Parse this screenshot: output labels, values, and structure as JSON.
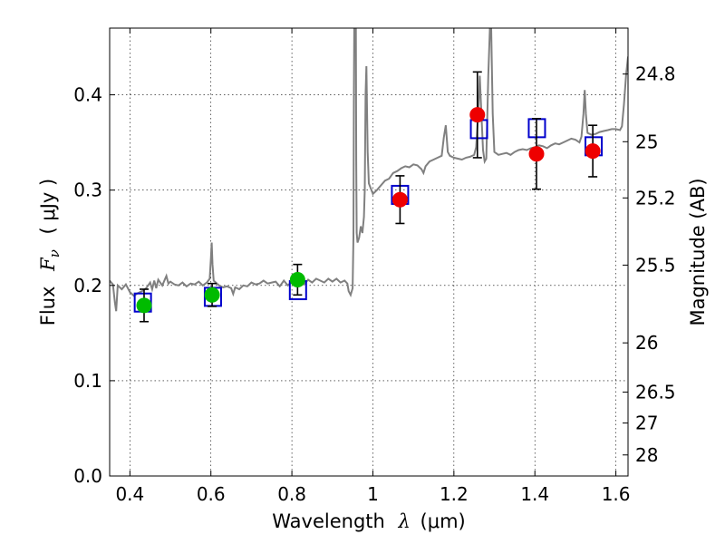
{
  "chart_data": {
    "type": "scatter",
    "xlabel_prefix": "Wavelength",
    "xlabel_var": "λ",
    "xlabel_unit": "(μm)",
    "ylabel_prefix": "Flux",
    "ylabel_var": "F",
    "ylabel_sub": "ν",
    "ylabel_unit": "( μJy )",
    "y2label": "Magnitude (AB)",
    "xlim": [
      0.35,
      1.63
    ],
    "ylim": [
      0.0,
      0.47
    ],
    "x_ticks": [
      0.4,
      0.6,
      0.8,
      1.0,
      1.2,
      1.4,
      1.6
    ],
    "x_tick_labels": [
      "0.4",
      "0.6",
      "0.8",
      "1",
      "1.2",
      "1.4",
      "1.6"
    ],
    "y_ticks": [
      0.0,
      0.1,
      0.2,
      0.3,
      0.4
    ],
    "y_tick_labels": [
      "0.0",
      "0.1",
      "0.2",
      "0.3",
      "0.4"
    ],
    "mag_ticks": [
      {
        "label": "24.8",
        "flux": 0.4218
      },
      {
        "label": "25",
        "flux": 0.3508
      },
      {
        "label": "25.2",
        "flux": 0.2918
      },
      {
        "label": "25.5",
        "flux": 0.2213
      },
      {
        "label": "26",
        "flux": 0.1397
      },
      {
        "label": "26.5",
        "flux": 0.0881
      },
      {
        "label": "27",
        "flux": 0.0556
      },
      {
        "label": "28",
        "flux": 0.0221
      }
    ],
    "grid": true,
    "colors": {
      "template": "#808080",
      "model_box": "#0000cc",
      "optical": "#00bb00",
      "infrared": "#ee0000",
      "errorbar": "#000000"
    },
    "series": [
      {
        "name": "template spectrum",
        "kind": "line",
        "points": [
          [
            0.35,
            0.205
          ],
          [
            0.358,
            0.201
          ],
          [
            0.363,
            0.182
          ],
          [
            0.366,
            0.173
          ],
          [
            0.37,
            0.2
          ],
          [
            0.38,
            0.196
          ],
          [
            0.39,
            0.201
          ],
          [
            0.4,
            0.193
          ],
          [
            0.41,
            0.189
          ],
          [
            0.42,
            0.192
          ],
          [
            0.43,
            0.194
          ],
          [
            0.44,
            0.197
          ],
          [
            0.45,
            0.203
          ],
          [
            0.455,
            0.196
          ],
          [
            0.46,
            0.205
          ],
          [
            0.465,
            0.197
          ],
          [
            0.47,
            0.206
          ],
          [
            0.48,
            0.2
          ],
          [
            0.49,
            0.21
          ],
          [
            0.495,
            0.202
          ],
          [
            0.5,
            0.204
          ],
          [
            0.51,
            0.201
          ],
          [
            0.52,
            0.2
          ],
          [
            0.53,
            0.203
          ],
          [
            0.54,
            0.199
          ],
          [
            0.55,
            0.202
          ],
          [
            0.56,
            0.201
          ],
          [
            0.57,
            0.204
          ],
          [
            0.58,
            0.2
          ],
          [
            0.59,
            0.203
          ],
          [
            0.597,
            0.207
          ],
          [
            0.6,
            0.228
          ],
          [
            0.602,
            0.245
          ],
          [
            0.604,
            0.222
          ],
          [
            0.607,
            0.205
          ],
          [
            0.615,
            0.202
          ],
          [
            0.62,
            0.2
          ],
          [
            0.63,
            0.198
          ],
          [
            0.64,
            0.199
          ],
          [
            0.65,
            0.197
          ],
          [
            0.655,
            0.191
          ],
          [
            0.66,
            0.198
          ],
          [
            0.67,
            0.196
          ],
          [
            0.68,
            0.2
          ],
          [
            0.69,
            0.199
          ],
          [
            0.7,
            0.203
          ],
          [
            0.71,
            0.201
          ],
          [
            0.72,
            0.202
          ],
          [
            0.73,
            0.205
          ],
          [
            0.74,
            0.202
          ],
          [
            0.75,
            0.203
          ],
          [
            0.76,
            0.204
          ],
          [
            0.77,
            0.199
          ],
          [
            0.78,
            0.205
          ],
          [
            0.79,
            0.2
          ],
          [
            0.8,
            0.204
          ],
          [
            0.81,
            0.202
          ],
          [
            0.82,
            0.206
          ],
          [
            0.83,
            0.201
          ],
          [
            0.84,
            0.206
          ],
          [
            0.85,
            0.203
          ],
          [
            0.86,
            0.207
          ],
          [
            0.87,
            0.205
          ],
          [
            0.88,
            0.203
          ],
          [
            0.89,
            0.207
          ],
          [
            0.9,
            0.204
          ],
          [
            0.91,
            0.207
          ],
          [
            0.92,
            0.203
          ],
          [
            0.93,
            0.205
          ],
          [
            0.937,
            0.202
          ],
          [
            0.94,
            0.194
          ],
          [
            0.945,
            0.19
          ],
          [
            0.95,
            0.197
          ],
          [
            0.952,
            0.25
          ],
          [
            0.953,
            0.4
          ],
          [
            0.954,
            0.47
          ],
          [
            0.958,
            0.47
          ],
          [
            0.959,
            0.33
          ],
          [
            0.96,
            0.255
          ],
          [
            0.962,
            0.245
          ],
          [
            0.966,
            0.25
          ],
          [
            0.97,
            0.262
          ],
          [
            0.974,
            0.255
          ],
          [
            0.978,
            0.272
          ],
          [
            0.98,
            0.3
          ],
          [
            0.982,
            0.4
          ],
          [
            0.984,
            0.43
          ],
          [
            0.987,
            0.34
          ],
          [
            0.99,
            0.307
          ],
          [
            1.0,
            0.296
          ],
          [
            1.01,
            0.3
          ],
          [
            1.02,
            0.305
          ],
          [
            1.03,
            0.31
          ],
          [
            1.04,
            0.312
          ],
          [
            1.05,
            0.318
          ],
          [
            1.06,
            0.32
          ],
          [
            1.07,
            0.323
          ],
          [
            1.08,
            0.325
          ],
          [
            1.09,
            0.324
          ],
          [
            1.1,
            0.327
          ],
          [
            1.11,
            0.326
          ],
          [
            1.12,
            0.322
          ],
          [
            1.125,
            0.318
          ],
          [
            1.13,
            0.325
          ],
          [
            1.14,
            0.33
          ],
          [
            1.15,
            0.332
          ],
          [
            1.16,
            0.334
          ],
          [
            1.17,
            0.336
          ],
          [
            1.175,
            0.355
          ],
          [
            1.18,
            0.368
          ],
          [
            1.185,
            0.34
          ],
          [
            1.19,
            0.336
          ],
          [
            1.2,
            0.334
          ],
          [
            1.21,
            0.333
          ],
          [
            1.22,
            0.332
          ],
          [
            1.23,
            0.334
          ],
          [
            1.24,
            0.335
          ],
          [
            1.25,
            0.337
          ],
          [
            1.255,
            0.345
          ],
          [
            1.26,
            0.38
          ],
          [
            1.264,
            0.42
          ],
          [
            1.268,
            0.38
          ],
          [
            1.272,
            0.342
          ],
          [
            1.276,
            0.33
          ],
          [
            1.28,
            0.333
          ],
          [
            1.285,
            0.42
          ],
          [
            1.289,
            0.47
          ],
          [
            1.292,
            0.47
          ],
          [
            1.296,
            0.38
          ],
          [
            1.3,
            0.34
          ],
          [
            1.31,
            0.337
          ],
          [
            1.32,
            0.338
          ],
          [
            1.33,
            0.339
          ],
          [
            1.34,
            0.337
          ],
          [
            1.35,
            0.34
          ],
          [
            1.36,
            0.342
          ],
          [
            1.37,
            0.343
          ],
          [
            1.38,
            0.342
          ],
          [
            1.39,
            0.344
          ],
          [
            1.4,
            0.345
          ],
          [
            1.41,
            0.347
          ],
          [
            1.42,
            0.346
          ],
          [
            1.43,
            0.344
          ],
          [
            1.44,
            0.347
          ],
          [
            1.45,
            0.349
          ],
          [
            1.46,
            0.348
          ],
          [
            1.47,
            0.35
          ],
          [
            1.48,
            0.352
          ],
          [
            1.49,
            0.354
          ],
          [
            1.5,
            0.353
          ],
          [
            1.51,
            0.35
          ],
          [
            1.515,
            0.356
          ],
          [
            1.52,
            0.38
          ],
          [
            1.523,
            0.405
          ],
          [
            1.526,
            0.38
          ],
          [
            1.53,
            0.36
          ],
          [
            1.54,
            0.358
          ],
          [
            1.55,
            0.359
          ],
          [
            1.56,
            0.361
          ],
          [
            1.57,
            0.362
          ],
          [
            1.58,
            0.363
          ],
          [
            1.59,
            0.364
          ],
          [
            1.6,
            0.364
          ],
          [
            1.61,
            0.363
          ],
          [
            1.615,
            0.367
          ],
          [
            1.62,
            0.39
          ],
          [
            1.625,
            0.42
          ],
          [
            1.63,
            0.44
          ]
        ]
      },
      {
        "name": "synthetic photometry",
        "kind": "open-square",
        "points": [
          [
            0.432,
            0.182
          ],
          [
            0.605,
            0.188
          ],
          [
            0.815,
            0.195
          ],
          [
            1.067,
            0.295
          ],
          [
            1.262,
            0.364
          ],
          [
            1.405,
            0.365
          ],
          [
            1.545,
            0.346
          ]
        ]
      },
      {
        "name": "optical photometry",
        "kind": "filled-circle",
        "points": [
          {
            "x": 0.435,
            "y": 0.179,
            "err": 0.017
          },
          {
            "x": 0.603,
            "y": 0.19,
            "err": 0.012
          },
          {
            "x": 0.814,
            "y": 0.206,
            "err": 0.016
          }
        ]
      },
      {
        "name": "near-infrared photometry",
        "kind": "filled-circle",
        "points": [
          {
            "x": 1.067,
            "y": 0.29,
            "err": 0.025
          },
          {
            "x": 1.258,
            "y": 0.379,
            "err": 0.045
          },
          {
            "x": 1.404,
            "y": 0.338,
            "err": 0.037
          },
          {
            "x": 1.543,
            "y": 0.341,
            "err": 0.027
          }
        ]
      }
    ]
  }
}
